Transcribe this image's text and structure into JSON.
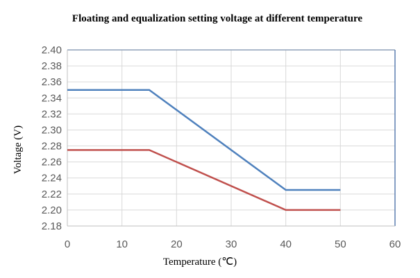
{
  "chart_data": {
    "type": "line",
    "title": "Floating and equalization setting voltage at different temperature",
    "xlabel": "Temperature (℃)",
    "ylabel": "Voltage (V)",
    "xlim": [
      0,
      60
    ],
    "ylim": [
      2.18,
      2.4
    ],
    "xticks": [
      0,
      10,
      20,
      30,
      40,
      50,
      60
    ],
    "yticks": [
      2.18,
      2.2,
      2.22,
      2.24,
      2.26,
      2.28,
      2.3,
      2.32,
      2.34,
      2.36,
      2.38,
      2.4
    ],
    "grid": true,
    "legend": "none",
    "series": [
      {
        "color": "#4f81bd",
        "x": [
          0,
          15,
          40,
          50
        ],
        "y": [
          2.35,
          2.35,
          2.225,
          2.225
        ]
      },
      {
        "color": "#c0504d",
        "x": [
          0,
          15,
          40,
          50
        ],
        "y": [
          2.275,
          2.275,
          2.2,
          2.2
        ]
      }
    ]
  }
}
